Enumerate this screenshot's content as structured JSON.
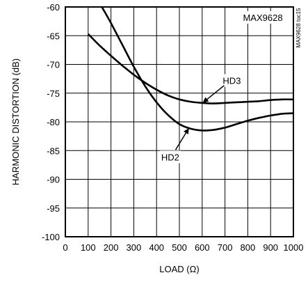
{
  "chart_data": {
    "type": "line",
    "title": "",
    "xlabel": "LOAD (Ω)",
    "ylabel": "HARMONIC DISTORTION (dB)",
    "xlim": [
      0,
      1000
    ],
    "ylim": [
      -100,
      -60
    ],
    "xticks": [
      0,
      100,
      200,
      300,
      400,
      500,
      600,
      700,
      800,
      900,
      1000
    ],
    "yticks": [
      -60,
      -65,
      -70,
      -75,
      -80,
      -85,
      -90,
      -95,
      -100
    ],
    "xtick_labels": [
      "0",
      "100",
      "200",
      "300",
      "400",
      "500",
      "600",
      "700",
      "800",
      "900",
      "1000"
    ],
    "ytick_labels": [
      "-60",
      "-65",
      "-70",
      "-75",
      "-80",
      "-85",
      "-90",
      "-95",
      "-100"
    ],
    "grid": true,
    "series": [
      {
        "name": "HD3",
        "x": [
          100,
          150,
          200,
          250,
          300,
          350,
          400,
          450,
          500,
          550,
          600,
          650,
          700,
          750,
          800,
          850,
          900,
          950,
          1000
        ],
        "y": [
          -64.7,
          -66.7,
          -68.5,
          -70.2,
          -71.8,
          -73.2,
          -74.4,
          -75.4,
          -76.1,
          -76.5,
          -76.7,
          -76.8,
          -76.7,
          -76.6,
          -76.5,
          -76.4,
          -76.2,
          -76.1,
          -76.1
        ]
      },
      {
        "name": "HD2",
        "x": [
          160,
          200,
          250,
          300,
          350,
          400,
          450,
          500,
          550,
          600,
          650,
          700,
          750,
          800,
          850,
          900,
          950,
          1000
        ],
        "y": [
          -60,
          -62.8,
          -66.6,
          -70.4,
          -73.8,
          -76.6,
          -78.8,
          -80.4,
          -81.2,
          -81.5,
          -81.4,
          -81,
          -80.4,
          -79.8,
          -79.3,
          -78.9,
          -78.6,
          -78.5
        ]
      }
    ],
    "annotations": [
      {
        "text": "MAX9628",
        "position": "top-right"
      },
      {
        "text": "HD3",
        "x": 730,
        "y": -72.8,
        "arrow_to": [
          605,
          -76.6
        ]
      },
      {
        "text": "HD2",
        "x": 460,
        "y": -86.1,
        "arrow_to": [
          540,
          -81.2
        ]
      },
      {
        "text": "MAX9628 toc15",
        "position": "right-edge"
      }
    ]
  }
}
